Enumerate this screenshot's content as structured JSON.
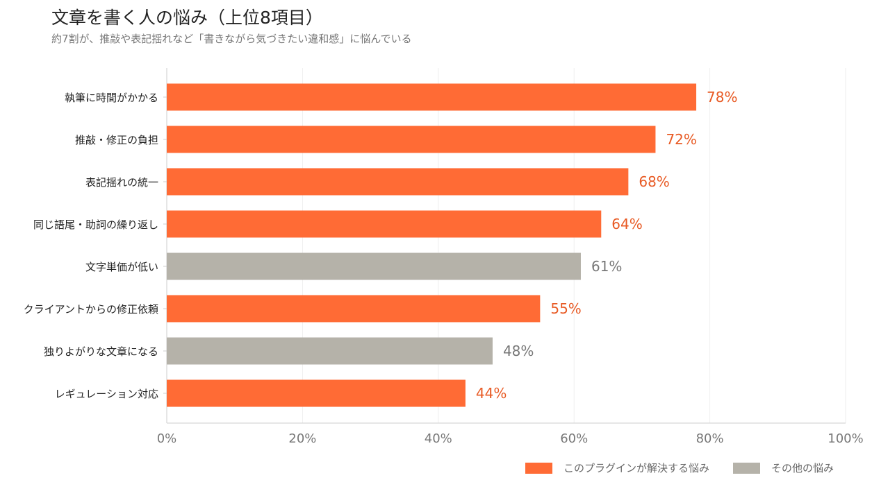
{
  "header": {
    "title": "文章を書く人の悩み（上位8項目）",
    "subtitle": "約7割が、推敲や表記揺れなど「書きながら気づきたい違和感」に悩んでいる"
  },
  "colors": {
    "solved": "#ff6b35",
    "other": "#b5b2a9",
    "solved_label": "#e85a24",
    "other_label": "#777777",
    "grid": "#eeeeee",
    "axis": "#cccccc",
    "tick_text": "#777777",
    "category_text": "#222222"
  },
  "legend": {
    "solved_label": "このプラグインが解決する悩み",
    "other_label": "その他の悩み"
  },
  "chart_data": {
    "type": "bar",
    "orientation": "horizontal",
    "title": "文章を書く人の悩み（上位8項目）",
    "subtitle": "約7割が、推敲や表記揺れなど「書きながら気づきたい違和感」に悩んでいる",
    "xlim": [
      0,
      100
    ],
    "xticks": [
      0,
      20,
      40,
      60,
      80,
      100
    ],
    "tick_suffix": "%",
    "grid": "vertical",
    "legend_position": "bottom-right",
    "categories": [
      "執筆に時間がかかる",
      "推敲・修正の負担",
      "表記揺れの統一",
      "同じ語尾・助詞の繰り返し",
      "文字単価が低い",
      "クライアントからの修正依頼",
      "独りよがりな文章になる",
      "レギュレーション対応"
    ],
    "values": [
      78,
      72,
      68,
      64,
      61,
      55,
      48,
      44
    ],
    "groups": [
      "solved",
      "solved",
      "solved",
      "solved",
      "other",
      "solved",
      "other",
      "solved"
    ],
    "series": [
      {
        "name": "このプラグインが解決する悩み",
        "key": "solved"
      },
      {
        "name": "その他の悩み",
        "key": "other"
      }
    ]
  }
}
